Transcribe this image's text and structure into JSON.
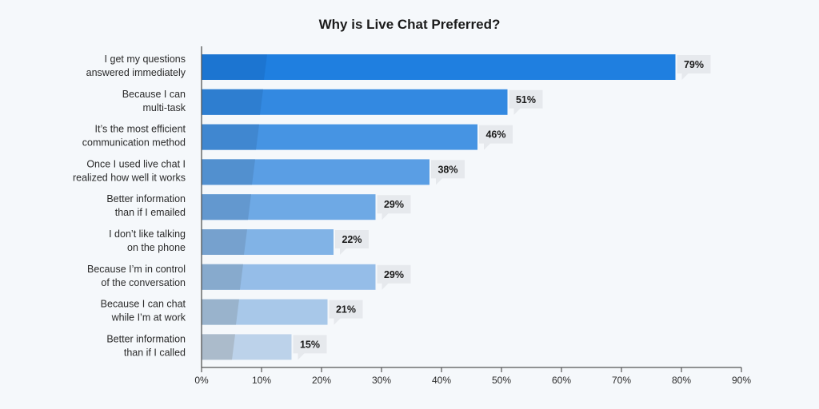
{
  "chart_data": {
    "type": "bar",
    "orientation": "horizontal",
    "title": "Why is Live Chat Preferred?",
    "xlabel": "",
    "ylabel": "",
    "xlim": [
      0,
      90
    ],
    "categories": [
      [
        "I get my questions",
        "answered immediately"
      ],
      [
        "Because I can",
        "multi-task"
      ],
      [
        "It’s the most efficient",
        "communication method"
      ],
      [
        "Once I used live chat I",
        "realized how well it works"
      ],
      [
        "Better information",
        "than if I emailed"
      ],
      [
        "I don’t like talking",
        "on the phone"
      ],
      [
        "Because I’m in control",
        "of the conversation"
      ],
      [
        "Because I can chat",
        "while I’m at work"
      ],
      [
        "Better information",
        "than if I called"
      ]
    ],
    "values": [
      79,
      51,
      46,
      38,
      29,
      22,
      29,
      21,
      15
    ],
    "value_labels": [
      "79%",
      "51%",
      "46%",
      "38%",
      "29%",
      "22%",
      "29%",
      "21%",
      "15%"
    ],
    "x_ticks": [
      "0%",
      "10%",
      "20%",
      "30%",
      "40%",
      "50%",
      "60%",
      "70%",
      "80%",
      "90%"
    ],
    "grid": false,
    "legend": "none",
    "colors": {
      "bar_start": "#1f7fe0",
      "bar_end": "#bcd2ea",
      "bar_inner_start": "#1c74cf",
      "bar_inner_end": "#a8b8c8",
      "label_bg": "#e6e9ed",
      "axis": "#555555"
    }
  }
}
